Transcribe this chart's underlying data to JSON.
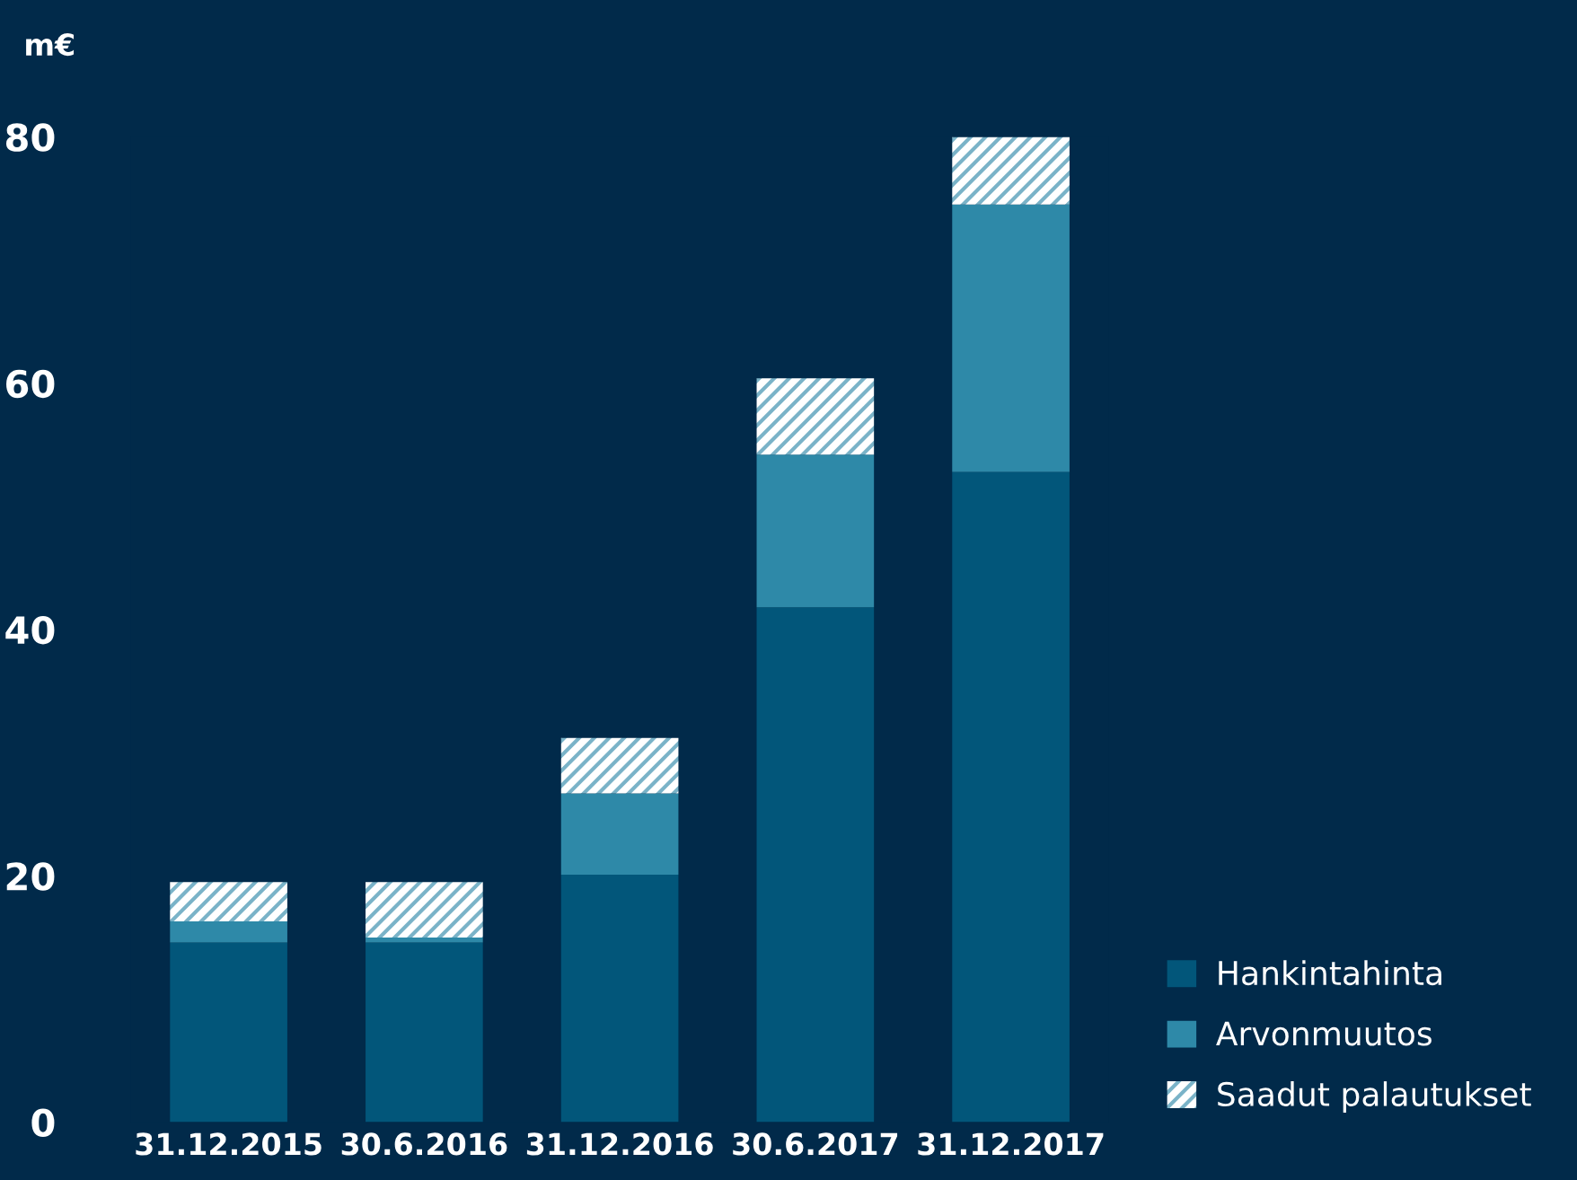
{
  "chart_data": {
    "type": "bar",
    "stacked": true,
    "ylabel": "m€",
    "categories": [
      "31.12.2015",
      "30.6.2016",
      "31.12.2016",
      "30.6.2017",
      "31.12.2017"
    ],
    "series": [
      {
        "name": "Hankintahinta",
        "color": "#02567a",
        "values": [
          14.6,
          14.6,
          20.1,
          41.8,
          52.8
        ]
      },
      {
        "name": "Arvonmuutos",
        "color": "#2e89a8",
        "values": [
          1.7,
          0.4,
          6.6,
          12.4,
          21.7
        ]
      },
      {
        "name": "Saadut palautukset",
        "color": "#ffffff",
        "values": [
          3.2,
          4.5,
          4.5,
          6.2,
          5.5
        ]
      }
    ],
    "ylim": [
      0,
      80
    ],
    "yticks": [
      0,
      20,
      40,
      60,
      80
    ],
    "grid": false,
    "legend": "bottom right"
  }
}
